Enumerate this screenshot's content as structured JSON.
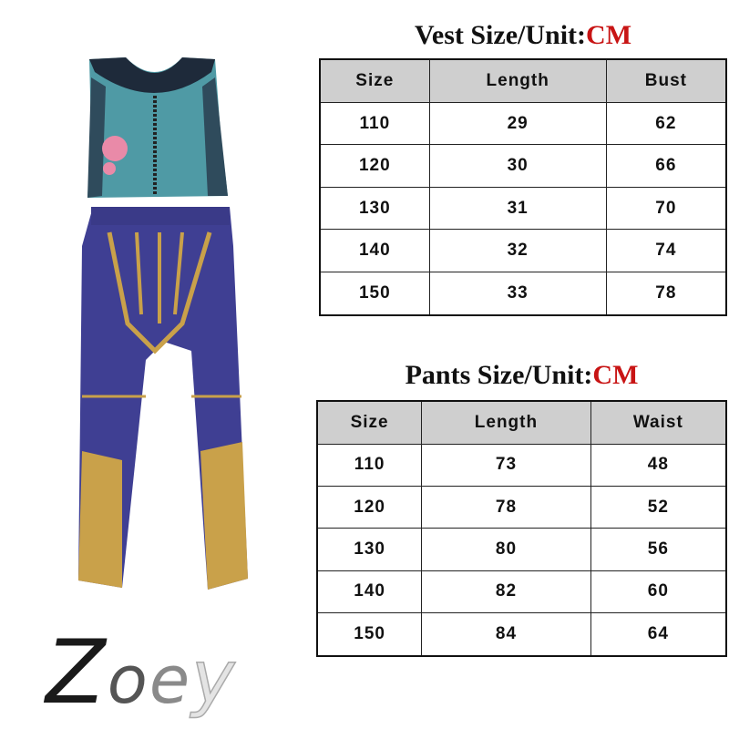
{
  "vest": {
    "title": "Vest Size/Unit:",
    "unit": "CM",
    "headers": [
      "Size",
      "Length",
      "Bust"
    ],
    "rows": [
      [
        "110",
        "29",
        "62"
      ],
      [
        "120",
        "30",
        "66"
      ],
      [
        "130",
        "31",
        "70"
      ],
      [
        "140",
        "32",
        "74"
      ],
      [
        "150",
        "33",
        "78"
      ]
    ]
  },
  "pants": {
    "title": "Pants Size/Unit:",
    "unit": "CM",
    "headers": [
      "Size",
      "Length",
      "Waist"
    ],
    "rows": [
      [
        "110",
        "73",
        "48"
      ],
      [
        "120",
        "78",
        "52"
      ],
      [
        "130",
        "80",
        "56"
      ],
      [
        "140",
        "82",
        "60"
      ],
      [
        "150",
        "84",
        "64"
      ]
    ]
  },
  "logo": {
    "text": "Zoey",
    "letters": [
      "Z",
      "o",
      "e",
      "y"
    ]
  },
  "colors": {
    "unit": "#c81414",
    "header_bg": "#cfcfcf",
    "vest": "#4f9aa5",
    "pants": "#3f3f93",
    "gold": "#c9a14a"
  }
}
